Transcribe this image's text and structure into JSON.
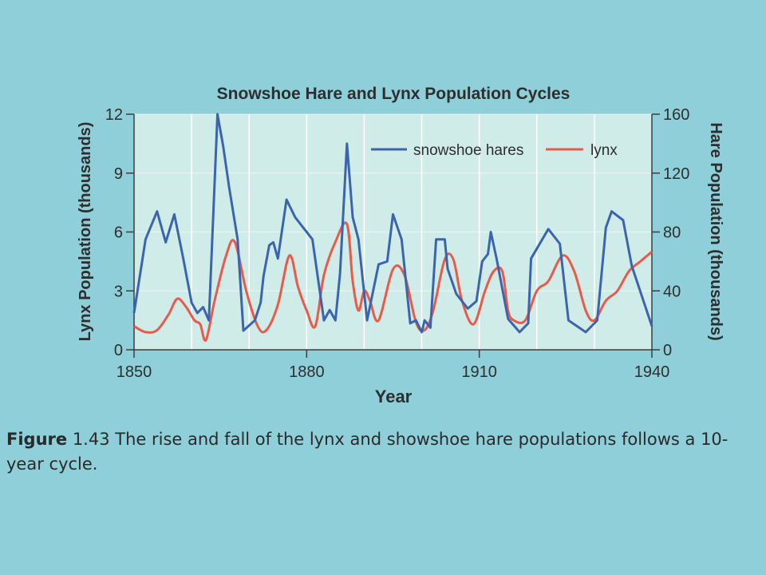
{
  "caption": {
    "figure_word": "Figure",
    "figure_number": "1.43",
    "text": "The rise and fall of the lynx and showshoe hare populations follows a 10-year cycle."
  },
  "chart_data": {
    "type": "line",
    "title": "Snowshoe Hare and Lynx Population Cycles",
    "xlabel": "Year",
    "ylabel_left": "Lynx Population (thousands)",
    "ylabel_right": "Hare Population (thousands)",
    "xlim": [
      1850,
      1940
    ],
    "ylim_left": [
      0,
      12
    ],
    "ylim_right": [
      0,
      160
    ],
    "x_ticks": [
      "1850",
      "1880",
      "1910",
      "1940"
    ],
    "y_ticks_left": [
      "0",
      "3",
      "6",
      "9",
      "12"
    ],
    "y_ticks_right": [
      "0",
      "40",
      "80",
      "120",
      "160"
    ],
    "legend_position": "top-right",
    "series": [
      {
        "name": "snowshoe hares",
        "axis": "right",
        "color": "#3b64b0",
        "x": [
          1850,
          1852,
          1854,
          1855.5,
          1857,
          1858.5,
          1860,
          1861,
          1862,
          1863,
          1864.5,
          1865.5,
          1866.5,
          1868,
          1869,
          1871,
          1872,
          1872.5,
          1873.5,
          1874.2,
          1875,
          1876.5,
          1878,
          1881,
          1883,
          1884,
          1885,
          1885.8,
          1887,
          1888,
          1889,
          1890.5,
          1892.5,
          1894,
          1895,
          1896.5,
          1898,
          1899,
          1900,
          1900.5,
          1901.5,
          1902.5,
          1904,
          1904.5,
          1906,
          1908,
          1909.5,
          1910.5,
          1911.5,
          1912,
          1913,
          1915,
          1917,
          1918.5,
          1919,
          1922,
          1924,
          1925.5,
          1928.5,
          1930.5,
          1932,
          1933,
          1935,
          1936.5,
          1940
        ],
        "y": [
          25,
          75,
          94,
          73,
          92,
          63,
          32,
          25,
          29,
          20,
          160,
          138,
          111,
          75,
          13,
          20,
          32,
          50,
          71,
          73,
          62,
          102,
          90,
          75,
          20,
          27,
          20,
          52,
          140,
          90,
          75,
          20,
          58,
          60,
          92,
          75,
          18,
          20,
          12,
          20,
          15,
          75,
          75,
          55,
          38,
          28,
          33,
          60,
          65,
          80,
          62,
          21,
          12,
          18,
          62,
          82,
          72,
          20,
          12,
          20,
          83,
          94,
          88,
          57,
          16
        ]
      },
      {
        "name": "lynx",
        "axis": "left",
        "color": "#e85a4a",
        "x": [
          1850,
          1852,
          1854,
          1856,
          1857.5,
          1859,
          1860.5,
          1861.5,
          1862.5,
          1864,
          1866,
          1867.5,
          1869.5,
          1871.5,
          1873,
          1875,
          1877,
          1878.5,
          1880,
          1881.5,
          1883,
          1885,
          1887,
          1888,
          1889,
          1890,
          1891,
          1892.5,
          1895,
          1897,
          1899,
          1900.5,
          1902,
          1904,
          1905.5,
          1907,
          1909,
          1911,
          1912.5,
          1914,
          1915,
          1916,
          1918,
          1920,
          1922,
          1924.5,
          1926.5,
          1928.5,
          1930,
          1932,
          1934,
          1936,
          1938,
          1940
        ],
        "y": [
          1.2,
          0.9,
          1.0,
          1.8,
          2.6,
          2.2,
          1.5,
          1.3,
          0.5,
          2.5,
          4.8,
          5.5,
          3.0,
          1.2,
          1.0,
          2.3,
          4.8,
          3.2,
          2.0,
          1.2,
          3.8,
          5.5,
          6.4,
          3.5,
          2.0,
          3.0,
          2.5,
          1.5,
          4.1,
          3.8,
          1.4,
          1.0,
          2.0,
          4.6,
          4.6,
          2.5,
          1.3,
          3.0,
          4.0,
          4.0,
          2.0,
          1.5,
          1.5,
          3.0,
          3.5,
          4.8,
          4.0,
          2.0,
          1.5,
          2.5,
          3.0,
          4.0,
          4.5,
          5.0
        ]
      }
    ]
  }
}
